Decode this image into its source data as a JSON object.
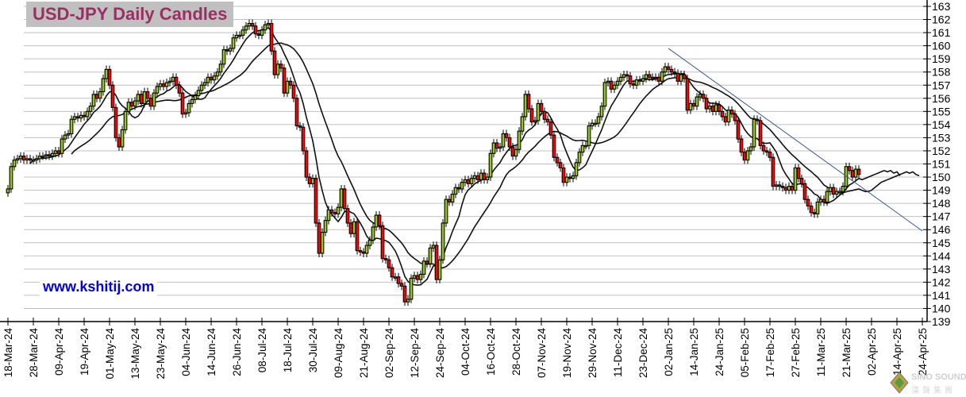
{
  "chart_data": {
    "type": "candlestick",
    "title": "USD-JPY Daily Candles",
    "watermark_url": "www.kshitij.com",
    "ylim": [
      139,
      163
    ],
    "y_ticks": [
      139,
      140,
      141,
      142,
      143,
      144,
      145,
      146,
      147,
      148,
      149,
      150,
      151,
      152,
      153,
      154,
      155,
      156,
      157,
      158,
      159,
      160,
      161,
      162,
      163
    ],
    "x_tick_labels": [
      "18-Mar-24",
      "28-Mar-24",
      "09-Apr-24",
      "19-Apr-24",
      "01-May-24",
      "13-May-24",
      "23-May-24",
      "04-Jun-24",
      "14-Jun-24",
      "26-Jun-24",
      "08-Jul-24",
      "18-Jul-24",
      "30-Jul-24",
      "09-Aug-24",
      "21-Aug-24",
      "02-Sep-24",
      "12-Sep-24",
      "24-Sep-24",
      "04-Oct-24",
      "16-Oct-24",
      "28-Oct-24",
      "07-Nov-24",
      "19-Nov-24",
      "29-Nov-24",
      "11-Dec-24",
      "23-Dec-24",
      "02-Jan-25",
      "14-Jan-25",
      "24-Jan-25",
      "05-Feb-25",
      "17-Feb-25",
      "27-Feb-25",
      "11-Mar-25",
      "21-Mar-25",
      "02-Apr-25",
      "14-Apr-25",
      "24-Apr-25"
    ],
    "x_tick_every_n_bars": 8,
    "grid": "horizontal",
    "first_open": 148.8,
    "closes": [
      149.1,
      150.8,
      151.3,
      151.4,
      151.6,
      151.3,
      151.4,
      151.3,
      151.3,
      151.4,
      151.6,
      151.6,
      151.7,
      151.6,
      151.8,
      152.0,
      151.8,
      152.9,
      153.2,
      153.3,
      154.4,
      154.6,
      154.5,
      154.7,
      154.6,
      155.0,
      155.4,
      156.3,
      156.0,
      156.5,
      157.5,
      158.2,
      157.0,
      155.3,
      153.0,
      152.3,
      153.6,
      155.0,
      155.7,
      155.4,
      155.8,
      156.3,
      155.6,
      156.5,
      156.0,
      155.4,
      156.4,
      156.9,
      157.1,
      156.9,
      157.2,
      157.3,
      157.6,
      157.0,
      156.4,
      154.8,
      154.9,
      155.6,
      155.9,
      156.2,
      156.6,
      157.0,
      157.2,
      157.6,
      157.4,
      157.7,
      158.0,
      158.6,
      159.7,
      159.6,
      159.8,
      160.6,
      160.8,
      160.8,
      161.2,
      161.5,
      161.7,
      161.5,
      160.9,
      160.8,
      161.2,
      161.6,
      161.7,
      159.6,
      157.8,
      158.6,
      158.3,
      156.4,
      157.3,
      157.0,
      156.0,
      153.9,
      153.8,
      152.0,
      150.0,
      149.5,
      149.9,
      146.5,
      144.2,
      145.8,
      146.7,
      147.5,
      147.3,
      147.2,
      147.7,
      149.1,
      147.6,
      146.5,
      145.7,
      146.6,
      144.4,
      144.3,
      144.2,
      144.8,
      145.2,
      146.2,
      147.1,
      146.3,
      143.8,
      143.7,
      143.1,
      142.4,
      142.4,
      141.9,
      141.7,
      140.5,
      140.7,
      142.3,
      142.5,
      142.2,
      142.6,
      143.6,
      143.4,
      144.6,
      144.8,
      142.2,
      143.7,
      146.5,
      148.3,
      148.1,
      148.7,
      149.2,
      149.1,
      149.6,
      149.8,
      149.5,
      149.9,
      150.1,
      149.8,
      150.3,
      149.8,
      150.0,
      151.8,
      152.6,
      152.2,
      152.3,
      153.3,
      153.0,
      152.3,
      151.6,
      152.1,
      153.5,
      154.6,
      156.3,
      155.2,
      154.2,
      154.3,
      155.6,
      155.0,
      154.4,
      154.2,
      153.2,
      151.5,
      151.1,
      150.7,
      149.6,
      150.0,
      149.9,
      150.1,
      151.1,
      151.9,
      152.4,
      152.4,
      153.9,
      154.1,
      154.1,
      154.6,
      155.4,
      157.2,
      157.3,
      156.7,
      157.0,
      157.3,
      157.6,
      157.8,
      157.7,
      157.1,
      157.0,
      157.4,
      157.3,
      157.5,
      157.8,
      157.6,
      157.6,
      157.6,
      157.3,
      158.0,
      158.4,
      158.2,
      158.0,
      157.9,
      157.3,
      157.8,
      157.5,
      155.1,
      155.6,
      155.4,
      156.1,
      156.3,
      156.0,
      155.2,
      155.4,
      155.0,
      155.5,
      155.0,
      154.6,
      154.2,
      155.1,
      154.8,
      154.3,
      152.9,
      151.9,
      151.3,
      152.0,
      152.3,
      154.4,
      154.3,
      152.4,
      152.0,
      151.9,
      151.5,
      149.3,
      149.4,
      149.3,
      149.2,
      149.0,
      149.3,
      149.0,
      150.7,
      149.9,
      149.5,
      148.3,
      147.8,
      147.3,
      147.2,
      148.1,
      148.3,
      148.1,
      148.9,
      149.2,
      148.7,
      148.9,
      148.9,
      149.3,
      150.8,
      150.5,
      150.0,
      150.6,
      150.2
    ],
    "moving_average_projection": {
      "fast": [
        149.8,
        149.9,
        150.0,
        150.1,
        150.2,
        150.3,
        150.4,
        150.5,
        150.4,
        150.5,
        150.3,
        150.4,
        150.1
      ],
      "slow": [
        149.0,
        148.9,
        148.9,
        149.0,
        149.2,
        149.4,
        149.6,
        149.7,
        149.8,
        149.9,
        150.0,
        150.1,
        150.2,
        150.3,
        150.4,
        150.3,
        150.4,
        150.2,
        150.1
      ]
    },
    "trendline": {
      "start": {
        "date": "02-Jan-25",
        "price": 159.8
      },
      "end": {
        "date": "24-Apr-25",
        "price": 145.9
      }
    },
    "colors": {
      "up": "#99cc00",
      "down": "#ff0000",
      "outline": "#000000",
      "ma": "#111111",
      "trendline": "#3a5a9a",
      "grid": "#c0c0c0",
      "title_text": "#9b2f63",
      "title_bg": "#c0c0c0",
      "url": "#0000ee"
    }
  },
  "logo": {
    "name": "SINO SOUND",
    "sub": "漢聲集團"
  }
}
